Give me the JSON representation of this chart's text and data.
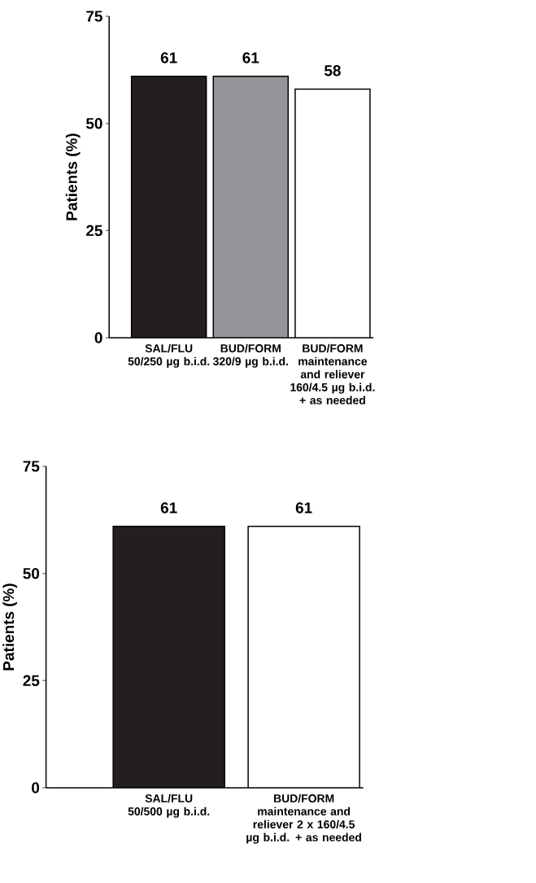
{
  "chart_data": [
    {
      "type": "bar",
      "ylabel": "Patients (%)",
      "categories": [
        "SAL/FLU 50/250 µg b.i.d.",
        "BUD/FORM 320/9 µg b.i.d.",
        "BUD/FORM maintenance and reliever 160/4.5 µg b.i.d. + as needed"
      ],
      "values": [
        61,
        61,
        58
      ],
      "colors": [
        "#231f20",
        "#939598",
        "#ffffff"
      ],
      "ylim": [
        0,
        75
      ],
      "yticks": [
        0,
        25,
        50,
        75
      ],
      "data_labels": true,
      "grid": false
    },
    {
      "type": "bar",
      "ylabel": "Patients (%)",
      "categories": [
        "SAL/FLU 50/500 µg b.i.d.",
        "BUD/FORM maintenance and reliever 2 x 160/4.5 µg b.i.d. + as needed"
      ],
      "values": [
        61,
        61
      ],
      "colors": [
        "#231f20",
        "#ffffff"
      ],
      "ylim": [
        0,
        75
      ],
      "yticks": [
        0,
        25,
        50,
        75
      ],
      "data_labels": true,
      "grid": false
    }
  ]
}
